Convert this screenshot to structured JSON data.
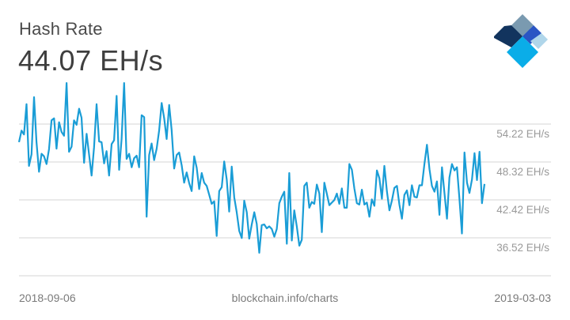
{
  "header": {
    "title": "Hash Rate",
    "current_value": "44.07 EH/s"
  },
  "logo": {
    "name": "blockchain-logo",
    "colors": [
      "#7a9ab0",
      "#12345e",
      "#2a55c4",
      "#b0d6ea",
      "#0aade8"
    ]
  },
  "footer": {
    "start_date": "2018-09-06",
    "source": "blockchain.info/charts",
    "end_date": "2019-03-03"
  },
  "colors": {
    "line": "#1a9dd6",
    "grid": "#d6d6d6",
    "tick_text": "#9a9a9a"
  },
  "chart_data": {
    "type": "line",
    "title": "Hash Rate",
    "xlabel": "",
    "ylabel": "EH/s",
    "x_start": "2018-09-06",
    "x_end": "2019-03-03",
    "yticks": [
      "54.22 EH/s",
      "48.32 EH/s",
      "42.42 EH/s",
      "36.52 EH/s"
    ],
    "ytick_values": [
      54.22,
      48.32,
      42.42,
      36.52
    ],
    "ylim": [
      30.62,
      60.12
    ],
    "grid": true,
    "legend": "none",
    "series": [
      {
        "name": "Hash Rate",
        "values": [
          51.4,
          53.2,
          52.6,
          57.3,
          47.7,
          49.5,
          58.4,
          51.4,
          46.8,
          49.6,
          49.2,
          48.0,
          50.3,
          54.8,
          55.1,
          50.4,
          54.5,
          53.0,
          52.4,
          60.6,
          49.9,
          50.7,
          54.8,
          54.1,
          56.6,
          55.2,
          48.2,
          52.7,
          49.5,
          46.2,
          50.6,
          57.3,
          51.5,
          51.4,
          48.1,
          50.0,
          46.2,
          51.1,
          51.7,
          58.6,
          47.1,
          51.9,
          60.6,
          48.8,
          49.6,
          47.5,
          48.9,
          49.3,
          47.5,
          55.6,
          55.3,
          39.8,
          49.4,
          51.2,
          48.6,
          50.4,
          53.2,
          57.5,
          55.1,
          51.9,
          57.2,
          53.3,
          47.3,
          49.4,
          49.8,
          47.8,
          45.1,
          46.7,
          45.0,
          43.8,
          49.2,
          47.4,
          44.1,
          46.6,
          45.1,
          44.6,
          43.2,
          41.8,
          42.2,
          36.8,
          43.8,
          44.4,
          48.4,
          45.6,
          40.6,
          47.6,
          42.8,
          40.5,
          37.6,
          36.5,
          42.3,
          40.5,
          36.4,
          38.6,
          40.5,
          38.7,
          34.2,
          38.5,
          38.6,
          38.0,
          38.3,
          37.9,
          36.7,
          37.9,
          41.9,
          42.9,
          43.7,
          35.6,
          46.6,
          36.1,
          40.8,
          38.3,
          35.3,
          36.2,
          44.6,
          45.1,
          41.2,
          42.1,
          41.8,
          44.8,
          43.4,
          37.4,
          45.1,
          43.4,
          41.6,
          42.0,
          42.4,
          43.4,
          41.8,
          44.2,
          41.2,
          41.2,
          48.0,
          47.1,
          44.2,
          41.9,
          41.7,
          44.0,
          41.7,
          42.0,
          39.8,
          42.5,
          41.5,
          47.0,
          45.8,
          42.6,
          47.7,
          43.8,
          40.8,
          42.3,
          44.3,
          44.6,
          41.7,
          39.5,
          43.2,
          43.9,
          41.6,
          44.7,
          42.9,
          42.8,
          44.7,
          44.7,
          48.0,
          51.0,
          47.2,
          44.6,
          43.7,
          45.3,
          40.1,
          47.5,
          43.5,
          39.5,
          45.9,
          48.0,
          47.0,
          47.5,
          42.5,
          37.2,
          49.8,
          45.1,
          43.5,
          45.6,
          49.7,
          45.5,
          49.9,
          41.9,
          44.9
        ]
      }
    ]
  }
}
